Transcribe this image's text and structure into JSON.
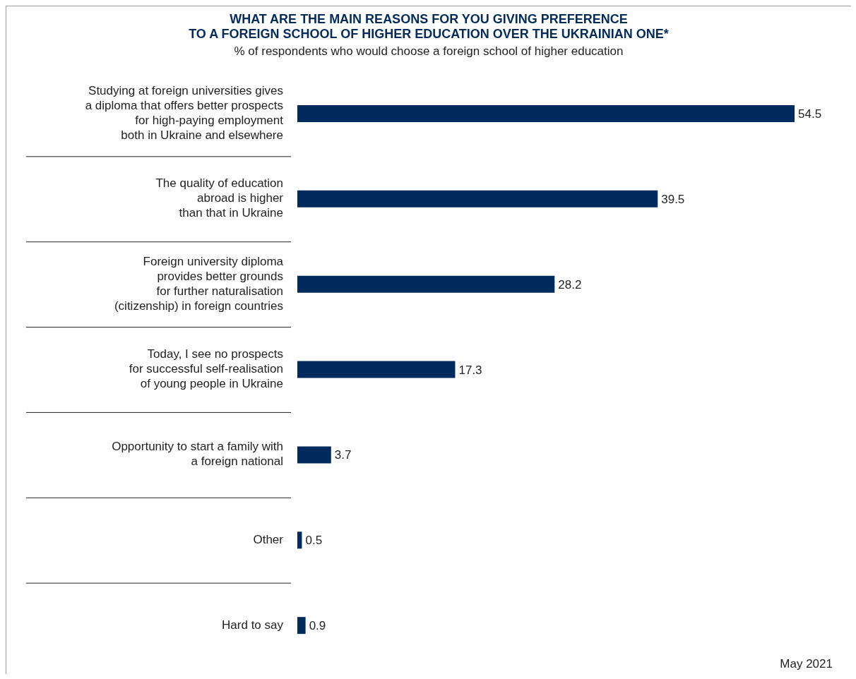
{
  "chart_data": {
    "type": "bar",
    "orientation": "horizontal",
    "title": "WHAT ARE THE MAIN REASONS FOR YOU GIVING PREFERENCE\nTO A FOREIGN SCHOOL OF HIGHER EDUCATION OVER THE UKRAINIAN ONE*",
    "subtitle": "% of respondents who would choose a foreign school of higher education",
    "categories": [
      "Studying at foreign universities gives\na diploma that offers better prospects\nfor high-paying employment\nboth in Ukraine and elsewhere",
      "The quality of education\nabroad is higher\nthan that in Ukraine",
      "Foreign university diploma\nprovides better grounds\nfor further naturalisation\n(citizenship) in foreign countries",
      "Today, I see no prospects\nfor successful self-realisation\nof young people in Ukraine",
      "Opportunity to start a family with\na foreign national",
      "Other",
      "Hard to say"
    ],
    "values": [
      54.5,
      39.5,
      28.2,
      17.3,
      3.7,
      0.5,
      0.9
    ],
    "color": "#002b5c",
    "data_labels": true,
    "annotations": [
      "May 2021"
    ]
  }
}
